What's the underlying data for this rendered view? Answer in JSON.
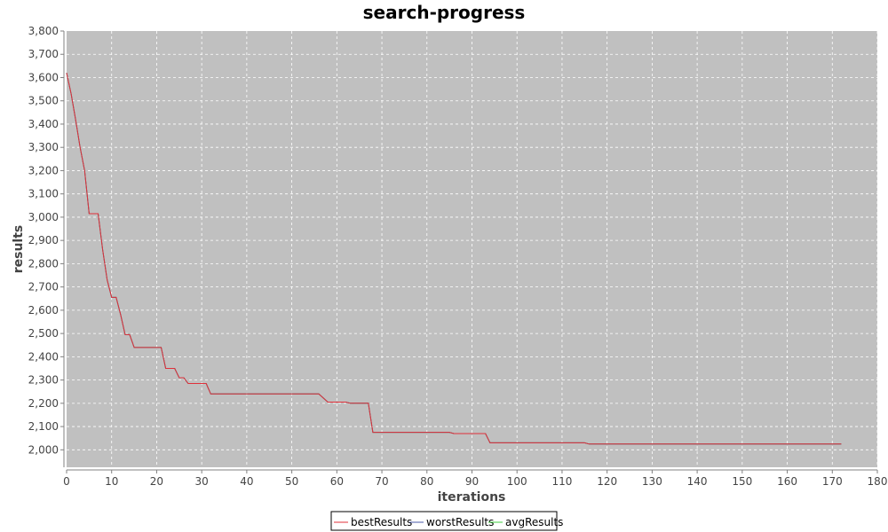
{
  "chart_data": {
    "type": "line",
    "title": "search-progress",
    "xlabel": "iterations",
    "ylabel": "results",
    "xlim": [
      0,
      180
    ],
    "ylim": [
      1925,
      3800
    ],
    "x_ticks": [
      0,
      10,
      20,
      30,
      40,
      50,
      60,
      70,
      80,
      90,
      100,
      110,
      120,
      130,
      140,
      150,
      160,
      170,
      180
    ],
    "y_ticks": [
      2000,
      2100,
      2200,
      2300,
      2400,
      2500,
      2600,
      2700,
      2800,
      2900,
      3000,
      3100,
      3200,
      3300,
      3400,
      3500,
      3600,
      3700,
      3800
    ],
    "x_tick_labels": [
      "0",
      "10",
      "20",
      "30",
      "40",
      "50",
      "60",
      "70",
      "80",
      "90",
      "100",
      "110",
      "120",
      "130",
      "140",
      "150",
      "160",
      "170",
      "180"
    ],
    "y_tick_labels": [
      "2,000",
      "2,100",
      "2,200",
      "2,300",
      "2,400",
      "2,500",
      "2,600",
      "2,700",
      "2,800",
      "2,900",
      "3,000",
      "3,100",
      "3,200",
      "3,300",
      "3,400",
      "3,500",
      "3,600",
      "3,700",
      "3,800"
    ],
    "grid": true,
    "legend_position": "bottom-center",
    "plot_background": "#c0c0c0",
    "series": [
      {
        "name": "bestResults",
        "color": "#e0303a",
        "points": [
          [
            0,
            3620
          ],
          [
            1,
            3530
          ],
          [
            2,
            3420
          ],
          [
            3,
            3300
          ],
          [
            4,
            3200
          ],
          [
            5,
            3015
          ],
          [
            6,
            3015
          ],
          [
            7,
            3015
          ],
          [
            8,
            2860
          ],
          [
            9,
            2730
          ],
          [
            10,
            2655
          ],
          [
            11,
            2655
          ],
          [
            12,
            2580
          ],
          [
            13,
            2495
          ],
          [
            14,
            2495
          ],
          [
            15,
            2440
          ],
          [
            16,
            2440
          ],
          [
            17,
            2440
          ],
          [
            18,
            2440
          ],
          [
            19,
            2440
          ],
          [
            20,
            2440
          ],
          [
            21,
            2440
          ],
          [
            22,
            2350
          ],
          [
            23,
            2350
          ],
          [
            24,
            2350
          ],
          [
            25,
            2310
          ],
          [
            26,
            2310
          ],
          [
            27,
            2285
          ],
          [
            28,
            2285
          ],
          [
            29,
            2285
          ],
          [
            30,
            2285
          ],
          [
            31,
            2285
          ],
          [
            32,
            2240
          ],
          [
            40,
            2240
          ],
          [
            50,
            2240
          ],
          [
            56,
            2240
          ],
          [
            58,
            2205
          ],
          [
            62,
            2205
          ],
          [
            63,
            2200
          ],
          [
            67,
            2200
          ],
          [
            68,
            2075
          ],
          [
            80,
            2075
          ],
          [
            85,
            2075
          ],
          [
            86,
            2070
          ],
          [
            93,
            2070
          ],
          [
            94,
            2030
          ],
          [
            100,
            2030
          ],
          [
            115,
            2030
          ],
          [
            116,
            2025
          ],
          [
            130,
            2025
          ],
          [
            150,
            2025
          ],
          [
            172,
            2025
          ]
        ]
      },
      {
        "name": "worstResults",
        "color": "#4a5aa8",
        "points": [
          [
            0,
            3620
          ],
          [
            1,
            3530
          ],
          [
            2,
            3420
          ],
          [
            3,
            3300
          ],
          [
            4,
            3200
          ],
          [
            5,
            3015
          ],
          [
            6,
            3015
          ],
          [
            7,
            3015
          ],
          [
            8,
            2860
          ],
          [
            9,
            2730
          ],
          [
            10,
            2655
          ],
          [
            11,
            2655
          ],
          [
            12,
            2580
          ],
          [
            13,
            2495
          ],
          [
            14,
            2495
          ],
          [
            15,
            2440
          ],
          [
            16,
            2440
          ],
          [
            17,
            2440
          ],
          [
            18,
            2440
          ],
          [
            19,
            2440
          ],
          [
            20,
            2440
          ],
          [
            21,
            2440
          ],
          [
            22,
            2350
          ],
          [
            23,
            2350
          ],
          [
            24,
            2350
          ],
          [
            25,
            2310
          ],
          [
            26,
            2310
          ],
          [
            27,
            2285
          ],
          [
            28,
            2285
          ],
          [
            29,
            2285
          ],
          [
            30,
            2285
          ],
          [
            31,
            2285
          ],
          [
            32,
            2240
          ],
          [
            40,
            2240
          ],
          [
            50,
            2240
          ],
          [
            56,
            2240
          ],
          [
            58,
            2205
          ],
          [
            62,
            2205
          ],
          [
            63,
            2200
          ],
          [
            67,
            2200
          ],
          [
            68,
            2075
          ],
          [
            80,
            2075
          ],
          [
            85,
            2075
          ],
          [
            86,
            2070
          ],
          [
            93,
            2070
          ],
          [
            94,
            2030
          ],
          [
            100,
            2030
          ],
          [
            115,
            2030
          ],
          [
            116,
            2025
          ],
          [
            130,
            2025
          ],
          [
            150,
            2025
          ],
          [
            172,
            2025
          ]
        ]
      },
      {
        "name": "avgResults",
        "color": "#3fcf3f",
        "points": [
          [
            0,
            3620
          ],
          [
            1,
            3530
          ],
          [
            2,
            3420
          ],
          [
            3,
            3300
          ],
          [
            4,
            3200
          ],
          [
            5,
            3015
          ],
          [
            6,
            3015
          ],
          [
            7,
            3015
          ],
          [
            8,
            2860
          ],
          [
            9,
            2730
          ],
          [
            10,
            2655
          ],
          [
            11,
            2655
          ],
          [
            12,
            2580
          ],
          [
            13,
            2495
          ],
          [
            14,
            2495
          ],
          [
            15,
            2440
          ],
          [
            16,
            2440
          ],
          [
            17,
            2440
          ],
          [
            18,
            2440
          ],
          [
            19,
            2440
          ],
          [
            20,
            2440
          ],
          [
            21,
            2440
          ],
          [
            22,
            2350
          ],
          [
            23,
            2350
          ],
          [
            24,
            2350
          ],
          [
            25,
            2310
          ],
          [
            26,
            2310
          ],
          [
            27,
            2285
          ],
          [
            28,
            2285
          ],
          [
            29,
            2285
          ],
          [
            30,
            2285
          ],
          [
            31,
            2285
          ],
          [
            32,
            2240
          ],
          [
            40,
            2240
          ],
          [
            50,
            2240
          ],
          [
            56,
            2240
          ],
          [
            58,
            2205
          ],
          [
            62,
            2205
          ],
          [
            63,
            2200
          ],
          [
            67,
            2200
          ],
          [
            68,
            2075
          ],
          [
            80,
            2075
          ],
          [
            85,
            2075
          ],
          [
            86,
            2070
          ],
          [
            93,
            2070
          ],
          [
            94,
            2030
          ],
          [
            100,
            2030
          ],
          [
            115,
            2030
          ],
          [
            116,
            2025
          ],
          [
            130,
            2025
          ],
          [
            150,
            2025
          ],
          [
            172,
            2025
          ]
        ]
      }
    ]
  }
}
